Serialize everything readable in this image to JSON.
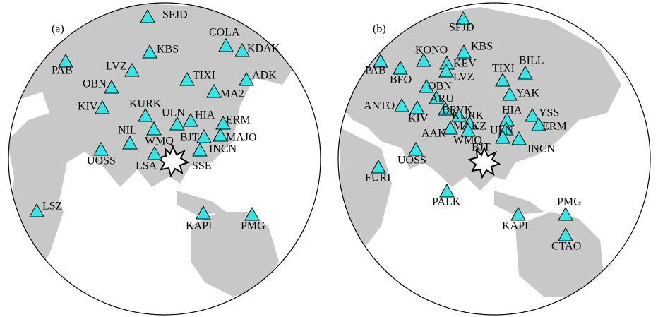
{
  "panels": [
    {
      "label": "(a)",
      "stations": [
        "SFJD",
        "COLA",
        "KDAK",
        "KBS",
        "PAB",
        "LVZ",
        "ADK",
        "TIXI",
        "OBN",
        "MA2",
        "KIV",
        "KURK",
        "ULN",
        "HIA",
        "ERM",
        "NIL",
        "WMQ",
        "BJT",
        "MAJO",
        "INCN",
        "UOSS",
        "LSA",
        "SSE",
        "LSZ",
        "KAPI",
        "PMG"
      ]
    },
    {
      "label": "(b)",
      "stations": [
        "SFJD",
        "KONO",
        "KBS",
        "PAB",
        "KEV",
        "BILL",
        "BFO",
        "LVZ",
        "TIXI",
        "YAK",
        "OBN",
        "ARU",
        "BRVK",
        "ANTO",
        "KIV",
        "KURK",
        "HIA",
        "YSS",
        "ERM",
        "MAKZ",
        "ULN",
        "AAK",
        "WMQ",
        "BJT",
        "INCN",
        "UOSS",
        "FURI",
        "PALK",
        "PMG",
        "KAPI",
        "CTAO"
      ]
    }
  ]
}
